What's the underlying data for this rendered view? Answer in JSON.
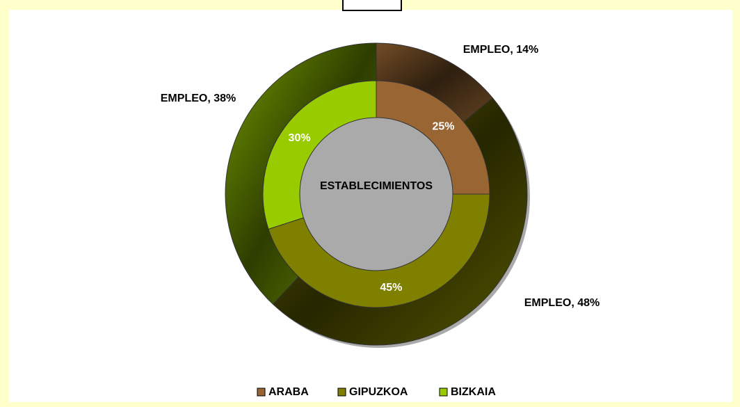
{
  "chart_data": {
    "type": "donut",
    "categories": [
      "ARABA",
      "GIPUZKOA",
      "BIZKAIA"
    ],
    "colors": [
      "#996633",
      "#808000",
      "#99cc00"
    ],
    "series": [
      {
        "name": "EMPLEO",
        "values": [
          14,
          48,
          38
        ],
        "value_labels": [
          "EMPLEO, 14%",
          "EMPLEO, 48%",
          "EMPLEO, 38%"
        ]
      },
      {
        "name": "ESTABLECIMIENTOS",
        "values": [
          25,
          45,
          30
        ],
        "value_labels": [
          "25%",
          "45%",
          "30%"
        ]
      }
    ],
    "legend": "bottom"
  }
}
